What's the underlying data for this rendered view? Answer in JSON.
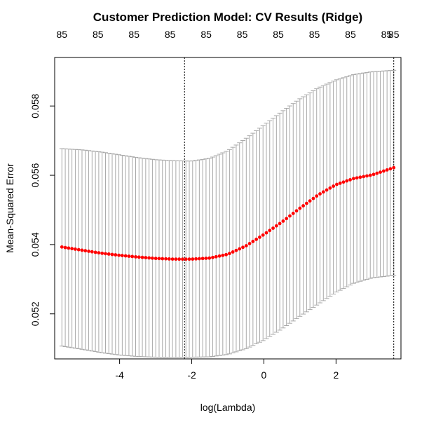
{
  "chart_data": {
    "type": "scatter",
    "title": "Customer Prediction Model: CV Results (Ridge)",
    "xlabel": "log(Lambda)",
    "ylabel": "Mean-Squared Error",
    "xlim": [
      -5.8,
      3.8
    ],
    "ylim": [
      0.0507,
      0.0594
    ],
    "x_ticks": [
      -4,
      -2,
      0,
      2
    ],
    "x_tick_labels": [
      "-4",
      "-2",
      "0",
      "2"
    ],
    "y_ticks": [
      0.052,
      0.054,
      0.056,
      0.058
    ],
    "y_tick_labels": [
      "0.052",
      "0.054",
      "0.056",
      "0.058"
    ],
    "top_axis_values": [
      -5.6,
      -4.6,
      -3.6,
      -2.6,
      -1.6,
      -0.6,
      0.4,
      1.4,
      2.4,
      3.4,
      3.6
    ],
    "top_axis_labels": [
      "85",
      "85",
      "85",
      "85",
      "85",
      "85",
      "85",
      "85",
      "85",
      "85",
      "85"
    ],
    "lambda_min_log": -2.2,
    "lambda_1se_log": 3.6,
    "reference_lines": [
      -2.2,
      3.6
    ],
    "grid": false,
    "legend": "none",
    "colors": {
      "points": "#ff0000",
      "error_bars": "#a8a8a8",
      "axes": "#000000"
    },
    "n_points": 100,
    "x_range": [
      -5.6,
      3.6
    ],
    "mse_curve": [
      [
        -5.6,
        0.05393
      ],
      [
        -5.0,
        0.05383
      ],
      [
        -4.5,
        0.05375
      ],
      [
        -4.0,
        0.05369
      ],
      [
        -3.5,
        0.05364
      ],
      [
        -3.0,
        0.0536
      ],
      [
        -2.5,
        0.05358
      ],
      [
        -2.0,
        0.05358
      ],
      [
        -1.5,
        0.05361
      ],
      [
        -1.0,
        0.05372
      ],
      [
        -0.5,
        0.05396
      ],
      [
        0.0,
        0.05429
      ],
      [
        0.5,
        0.05465
      ],
      [
        1.0,
        0.05505
      ],
      [
        1.5,
        0.05543
      ],
      [
        2.0,
        0.05573
      ],
      [
        2.5,
        0.05591
      ],
      [
        3.0,
        0.05601
      ],
      [
        3.6,
        0.05622
      ]
    ],
    "upper_curve": [
      [
        -5.6,
        0.05677
      ],
      [
        -5.0,
        0.05673
      ],
      [
        -4.5,
        0.05667
      ],
      [
        -4.0,
        0.05659
      ],
      [
        -3.5,
        0.05651
      ],
      [
        -3.0,
        0.05645
      ],
      [
        -2.5,
        0.05642
      ],
      [
        -2.0,
        0.05641
      ],
      [
        -1.5,
        0.05649
      ],
      [
        -1.0,
        0.05671
      ],
      [
        -0.5,
        0.05706
      ],
      [
        0.0,
        0.05745
      ],
      [
        0.5,
        0.05784
      ],
      [
        1.0,
        0.05821
      ],
      [
        1.5,
        0.05852
      ],
      [
        2.0,
        0.05875
      ],
      [
        2.5,
        0.05891
      ],
      [
        3.0,
        0.05899
      ],
      [
        3.6,
        0.05903
      ]
    ],
    "lower_curve": [
      [
        -5.6,
        0.05107
      ],
      [
        -5.0,
        0.05097
      ],
      [
        -4.5,
        0.05088
      ],
      [
        -4.0,
        0.05081
      ],
      [
        -3.5,
        0.05077
      ],
      [
        -3.0,
        0.05075
      ],
      [
        -2.5,
        0.05074
      ],
      [
        -2.0,
        0.05075
      ],
      [
        -1.5,
        0.05076
      ],
      [
        -1.0,
        0.05083
      ],
      [
        -0.5,
        0.05099
      ],
      [
        0.0,
        0.05124
      ],
      [
        0.5,
        0.05157
      ],
      [
        1.0,
        0.05193
      ],
      [
        1.5,
        0.05228
      ],
      [
        2.0,
        0.05262
      ],
      [
        2.5,
        0.05289
      ],
      [
        3.0,
        0.05304
      ],
      [
        3.6,
        0.05311
      ]
    ]
  }
}
